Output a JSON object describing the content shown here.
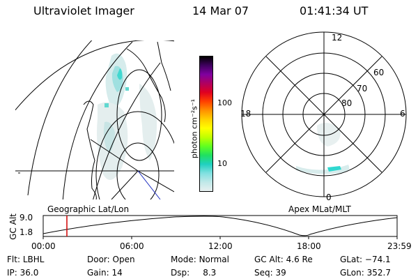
{
  "header": {
    "instrument": "Ultraviolet Imager",
    "date": "14 Mar 07",
    "time": "01:41:34 UT"
  },
  "colorbar": {
    "unit_label": "photon cm⁻²s⁻¹",
    "ticks": [
      "100",
      "10"
    ],
    "colors": [
      "#000000",
      "#400060",
      "#8000a0",
      "#b00060",
      "#e00020",
      "#ff4000",
      "#ff9000",
      "#ffd000",
      "#ffff00",
      "#c0ff00",
      "#60ff20",
      "#20e060",
      "#20d0c0",
      "#80e0e0",
      "#c0e8e8",
      "#e8f0f0"
    ]
  },
  "polar_plot": {
    "mlt_labels": {
      "top": "12",
      "left": "18",
      "right": "6",
      "bottom": "0"
    },
    "lat_labels": [
      "60",
      "70",
      "80"
    ]
  },
  "altitude_plot": {
    "ylabel": "GC Alt",
    "yticks": [
      "9.0",
      "1.8"
    ],
    "left_label": "Geographic Lat/Lon",
    "right_label": "Apex MLat/MLT",
    "xticks": [
      "00:00",
      "06:00",
      "12:00",
      "18:00",
      "23:59"
    ]
  },
  "status": {
    "flt": {
      "label": "Flt:",
      "value": "LBHL"
    },
    "ip": {
      "label": "IP:",
      "value": "36.0"
    },
    "door": {
      "label": "Door:",
      "value": "Open"
    },
    "gain": {
      "label": "Gain:",
      "value": "14"
    },
    "mode": {
      "label": "Mode:",
      "value": "Normal"
    },
    "dsp": {
      "label": "Dsp:",
      "value": "8.3"
    },
    "gcalt": {
      "label": "GC Alt:",
      "value": "4.6 Re"
    },
    "seq": {
      "label": "Seq:",
      "value": "39"
    },
    "glat": {
      "label": "GLat:",
      "value": "−74.1"
    },
    "glon": {
      "label": "GLon:",
      "value": "352.7"
    }
  }
}
